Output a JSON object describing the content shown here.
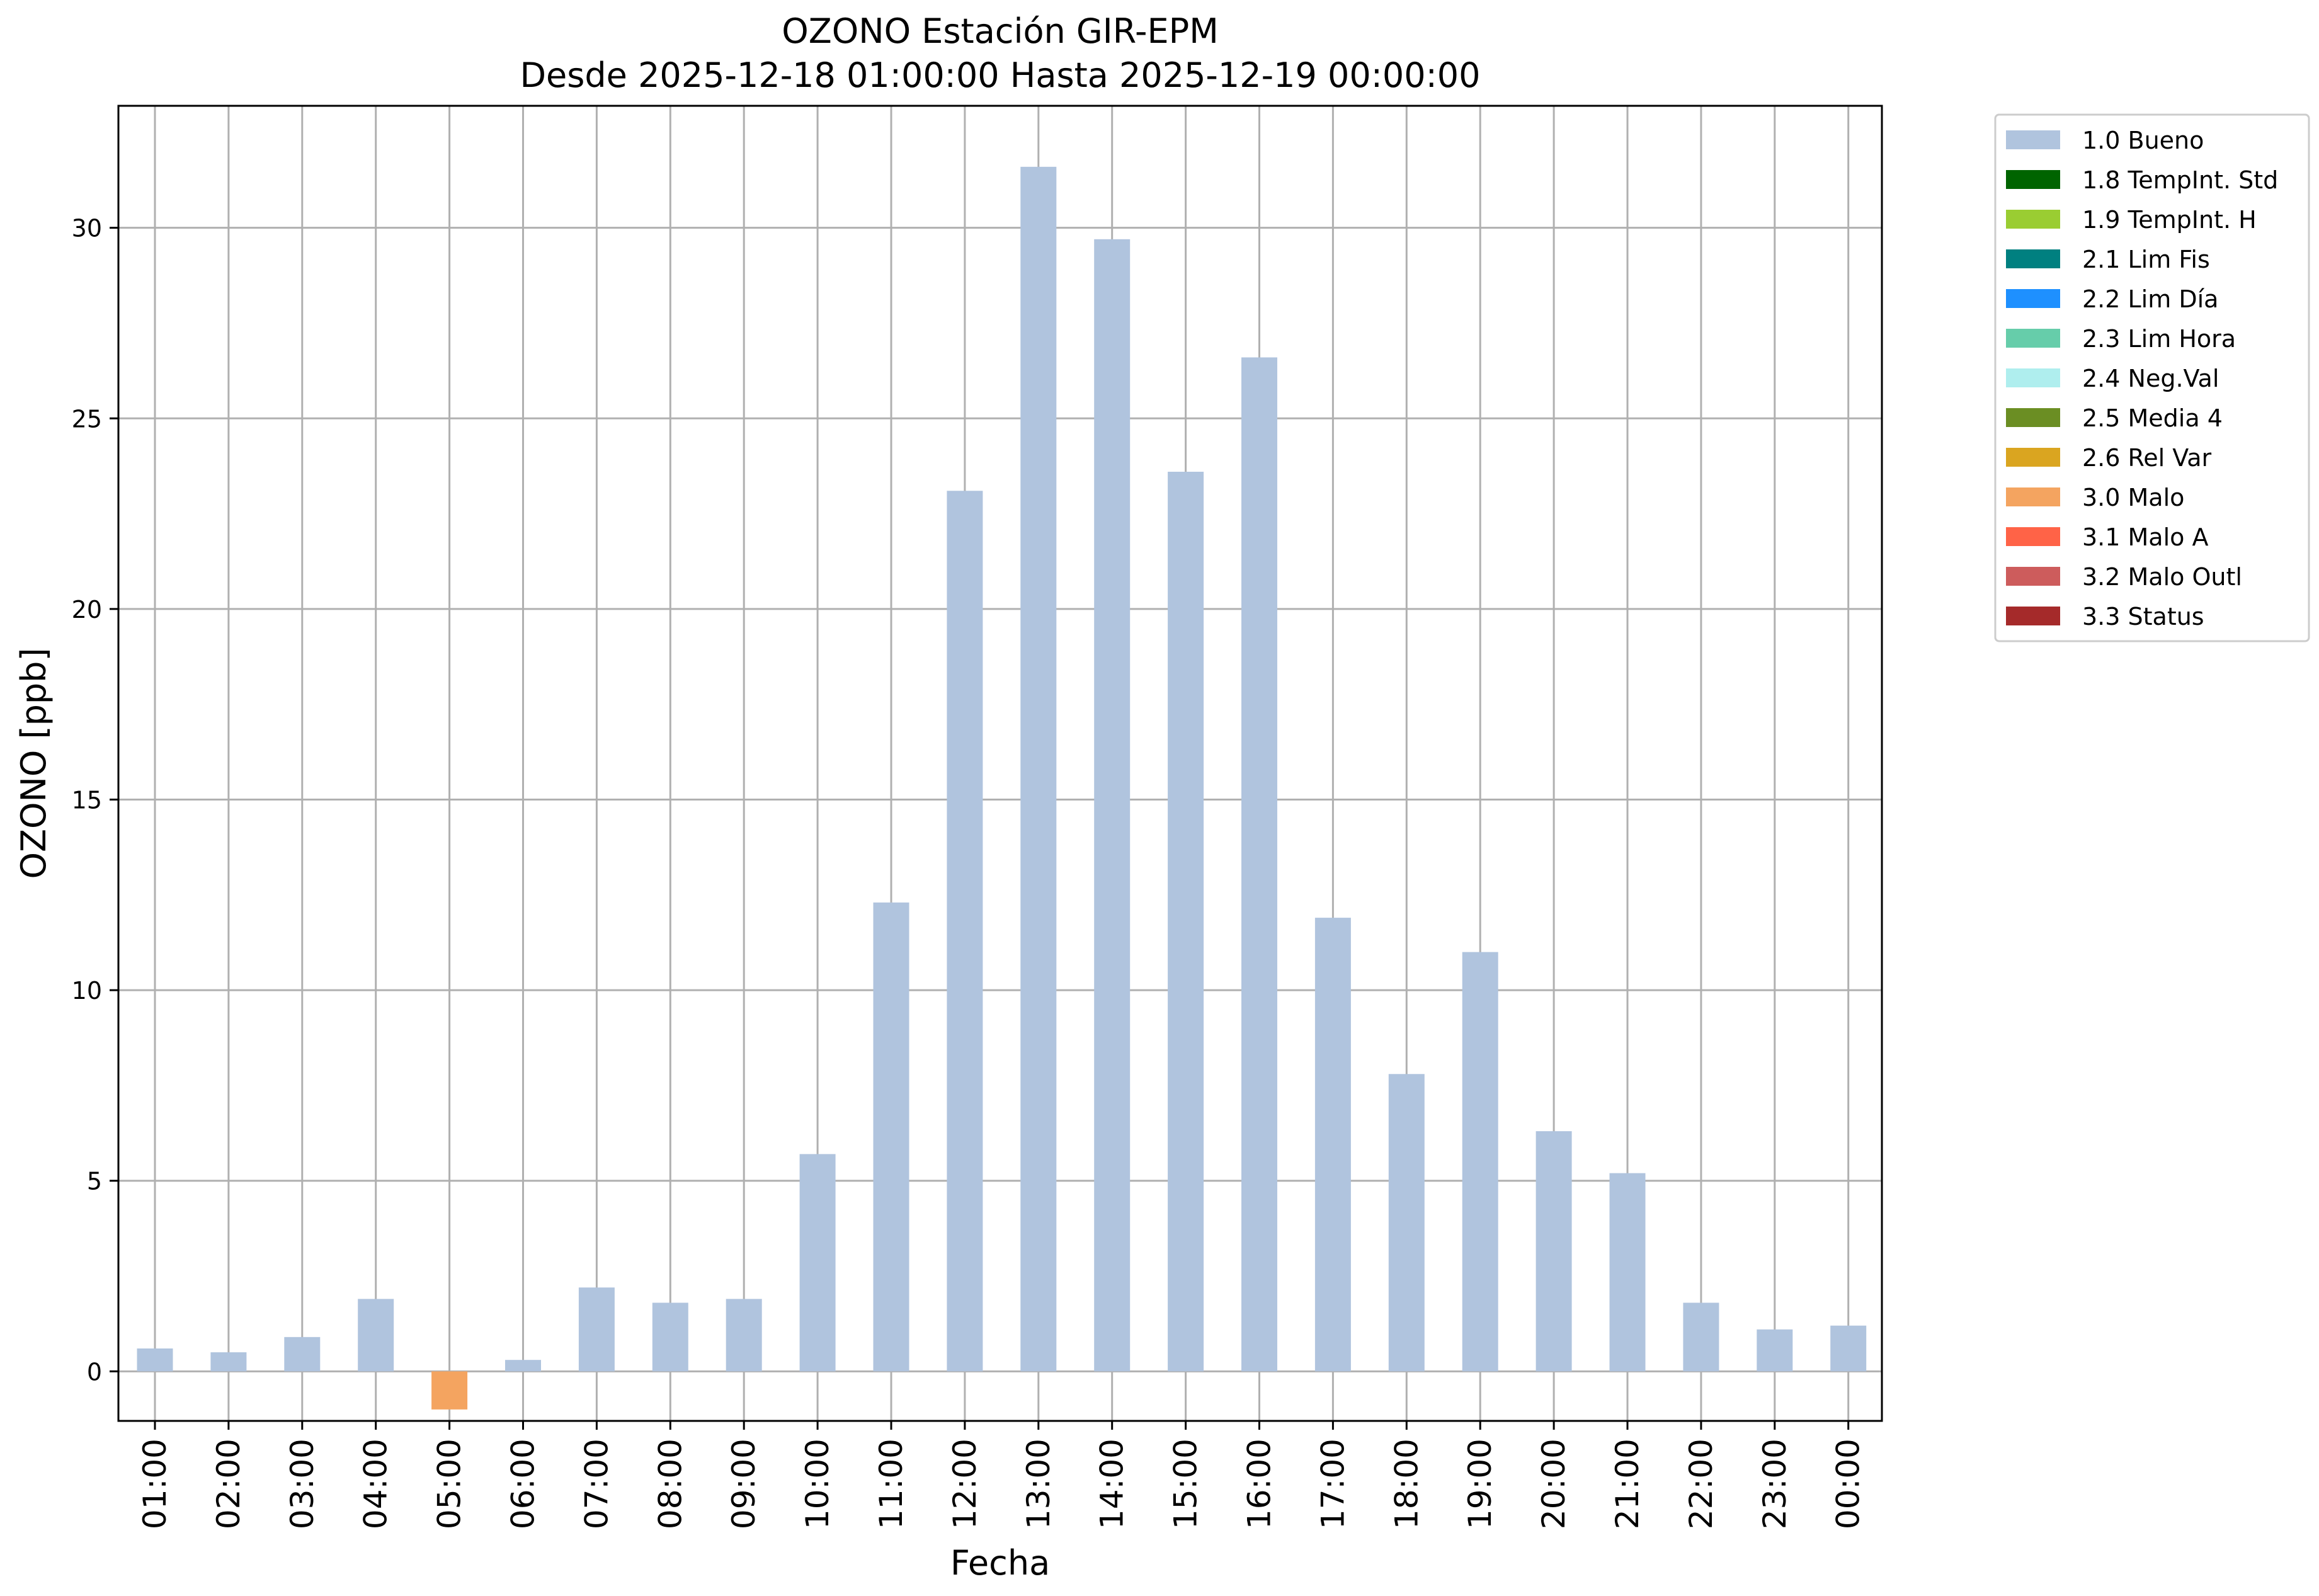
{
  "chart_data": {
    "type": "bar",
    "title": "OZONO Estación GIR-EPM",
    "subtitle": "Desde 2025-12-18 01:00:00 Hasta 2025-12-19 00:00:00",
    "xlabel": "Fecha",
    "ylabel": "OZONO [ppb]",
    "ylim": [
      -1.3,
      33.2
    ],
    "yticks": [
      0,
      5,
      10,
      15,
      20,
      25,
      30
    ],
    "grid": true,
    "legend_position": "outside-top-right",
    "categories": [
      "01:00",
      "02:00",
      "03:00",
      "04:00",
      "05:00",
      "06:00",
      "07:00",
      "08:00",
      "09:00",
      "10:00",
      "11:00",
      "12:00",
      "13:00",
      "14:00",
      "15:00",
      "16:00",
      "17:00",
      "18:00",
      "19:00",
      "20:00",
      "21:00",
      "22:00",
      "23:00",
      "00:00"
    ],
    "values": [
      0.6,
      0.5,
      0.9,
      1.9,
      -1.0,
      0.3,
      2.2,
      1.8,
      1.9,
      5.7,
      12.3,
      23.1,
      31.6,
      29.7,
      23.6,
      26.6,
      11.9,
      7.8,
      11.0,
      6.3,
      5.2,
      1.8,
      1.1,
      1.2
    ],
    "flags": [
      "1.0 Bueno",
      "1.0 Bueno",
      "1.0 Bueno",
      "1.0 Bueno",
      "3.0 Malo",
      "1.0 Bueno",
      "1.0 Bueno",
      "1.0 Bueno",
      "1.0 Bueno",
      "1.0 Bueno",
      "1.0 Bueno",
      "1.0 Bueno",
      "1.0 Bueno",
      "1.0 Bueno",
      "1.0 Bueno",
      "1.0 Bueno",
      "1.0 Bueno",
      "1.0 Bueno",
      "1.0 Bueno",
      "1.0 Bueno",
      "1.0 Bueno",
      "1.0 Bueno",
      "1.0 Bueno",
      "1.0 Bueno"
    ],
    "legend": [
      {
        "label": "1.0 Bueno",
        "color": "#b0c4de"
      },
      {
        "label": "1.8 TempInt. Std",
        "color": "#006400"
      },
      {
        "label": "1.9 TempInt. H",
        "color": "#9acd32"
      },
      {
        "label": "2.1 Lim Fis",
        "color": "#008080"
      },
      {
        "label": "2.2 Lim Día",
        "color": "#1e90ff"
      },
      {
        "label": "2.3 Lim Hora",
        "color": "#66cdaa"
      },
      {
        "label": "2.4 Neg.Val",
        "color": "#afeeee"
      },
      {
        "label": "2.5 Media 4",
        "color": "#6b8e23"
      },
      {
        "label": "2.6 Rel Var",
        "color": "#daa520"
      },
      {
        "label": "3.0 Malo",
        "color": "#f4a460"
      },
      {
        "label": "3.1 Malo A",
        "color": "#ff6347"
      },
      {
        "label": "3.2 Malo Outl",
        "color": "#cd5c5c"
      },
      {
        "label": "3.3 Status",
        "color": "#a52a2a"
      }
    ]
  }
}
